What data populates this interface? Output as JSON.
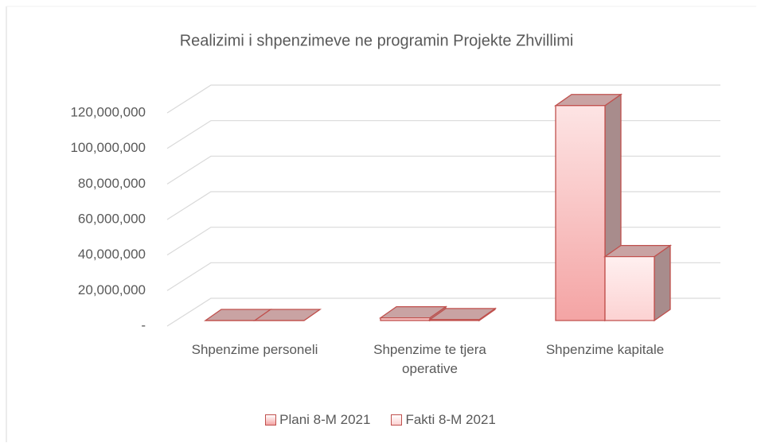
{
  "chart_data": {
    "type": "bar3d",
    "title": "Realizimi i shpenzimeve  ne programin Projekte Zhvillimi",
    "categories": [
      "Shpenzime personeli",
      "Shpenzime te tjera operative",
      "Shpenzime kapitale"
    ],
    "series": [
      {
        "name": "Plani 8-M 2021",
        "color": "#f4a4a4",
        "values": [
          0,
          1500000,
          121000000
        ]
      },
      {
        "name": "Fakti 8-M  2021",
        "color": "#fcd2d2",
        "values": [
          0,
          500000,
          36000000
        ]
      }
    ],
    "ylim": [
      0,
      120000000
    ],
    "yticks": [
      {
        "value": 0,
        "label": "-"
      },
      {
        "value": 20000000,
        "label": "20,000,000"
      },
      {
        "value": 40000000,
        "label": "40,000,000"
      },
      {
        "value": 60000000,
        "label": "60,000,000"
      },
      {
        "value": 80000000,
        "label": "80,000,000"
      },
      {
        "value": 100000000,
        "label": "100,000,000"
      },
      {
        "value": 120000000,
        "label": "120,000,000"
      }
    ],
    "grid": true,
    "legend": "bottom"
  }
}
